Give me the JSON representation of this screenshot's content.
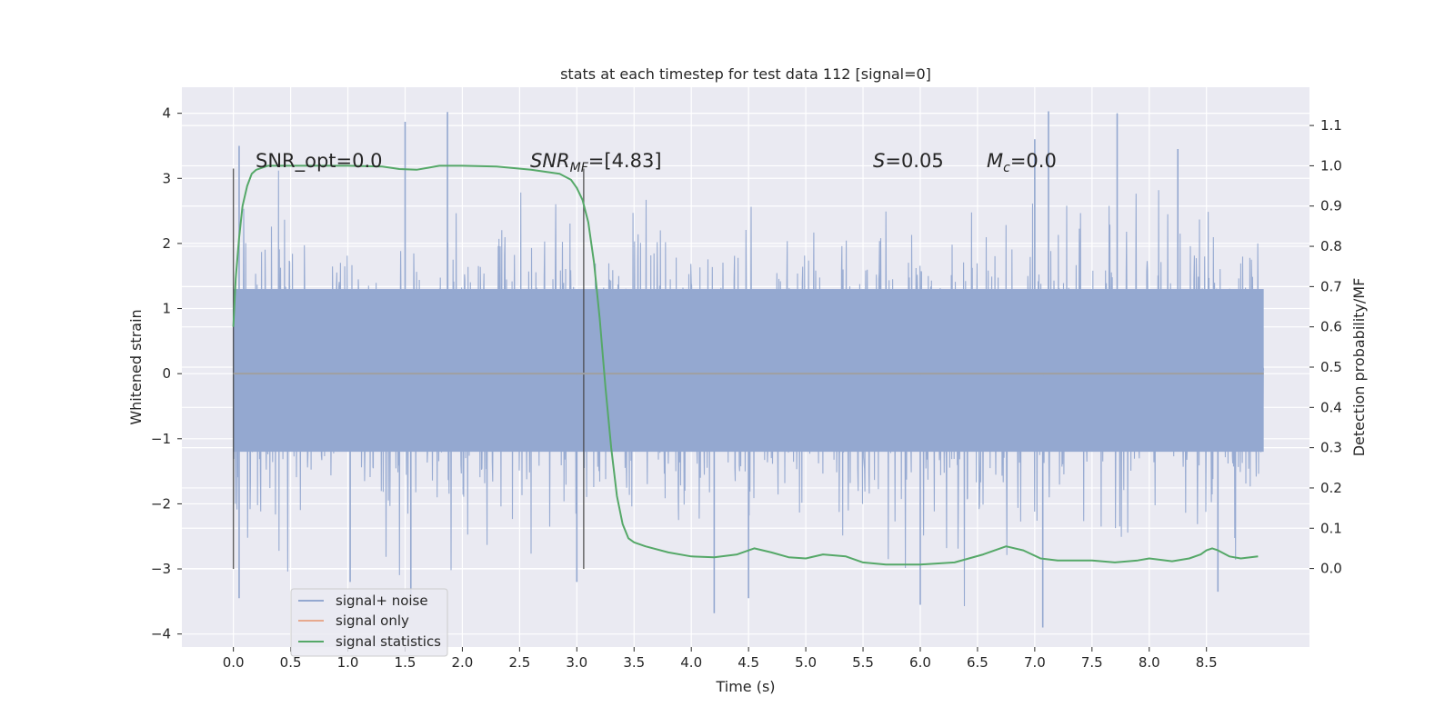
{
  "chart_data": {
    "type": "line",
    "title": "stats at each timestep for test data 112 [signal=0]",
    "xlabel": "Time (s)",
    "ylabel": "Whitened strain",
    "ylabel_right": "Detection probability/MF",
    "xlim": [
      -0.45,
      9.4
    ],
    "ylim": [
      -4.2,
      4.4
    ],
    "ylim_right": [
      -0.195,
      1.195
    ],
    "x_ticks": [
      0.0,
      0.5,
      1.0,
      1.5,
      2.0,
      2.5,
      3.0,
      3.5,
      4.0,
      4.5,
      5.0,
      5.5,
      6.0,
      6.5,
      7.0,
      7.5,
      8.0,
      8.5
    ],
    "x_tick_labels": [
      "0.0",
      "0.5",
      "1.0",
      "1.5",
      "2.0",
      "2.5",
      "3.0",
      "3.5",
      "4.0",
      "4.5",
      "5.0",
      "5.5",
      "6.0",
      "6.5",
      "7.0",
      "7.5",
      "8.0",
      "8.5"
    ],
    "y_ticks": [
      4,
      3,
      2,
      1,
      0,
      -1,
      -2,
      -3,
      -4
    ],
    "y_tick_labels": [
      "4",
      "3",
      "2",
      "1",
      "0",
      "−1",
      "−2",
      "−3",
      "−4"
    ],
    "y_right_ticks": [
      1.1,
      1.0,
      0.9,
      0.8,
      0.7,
      0.6,
      0.5,
      0.4,
      0.3,
      0.2,
      0.1,
      0.0
    ],
    "y_right_tick_labels": [
      "1.1",
      "1.0",
      "0.9",
      "0.8",
      "0.7",
      "0.6",
      "0.5",
      "0.4",
      "0.3",
      "0.2",
      "0.1",
      "0.0"
    ],
    "grid": true,
    "legend_position": "lower-left",
    "annotations": {
      "snr_opt": "SNR_opt=0.0",
      "snr_mf_base": "SNR",
      "snr_mf_sub": "MF",
      "snr_mf_rest": "=[4.83]",
      "s_sym": "S",
      "s_rest": "=0.05",
      "mc_sym": "M",
      "mc_sub": "c",
      "mc_rest": "=0.0"
    },
    "vertical_markers": [
      0.0,
      3.06
    ],
    "series": [
      {
        "name": "signal+ noise",
        "color": "#94a8d0",
        "kind": "noise",
        "x_range": [
          0.0,
          9.0
        ],
        "band": [
          -1.2,
          1.3
        ],
        "extremes": [
          -3.9,
          4.05
        ],
        "spike_points": [
          [
            0.05,
            3.5
          ],
          [
            0.05,
            -3.45
          ],
          [
            1.5,
            3.87
          ],
          [
            1.87,
            4.02
          ],
          [
            1.02,
            -3.2
          ],
          [
            1.55,
            -3.4
          ],
          [
            3.0,
            -3.2
          ],
          [
            4.2,
            -3.68
          ],
          [
            4.5,
            -3.45
          ],
          [
            6.0,
            -3.55
          ],
          [
            7.07,
            -3.9
          ],
          [
            7.12,
            4.03
          ],
          [
            7.72,
            4.0
          ],
          [
            8.6,
            -3.35
          ],
          [
            8.25,
            3.45
          ],
          [
            7.0,
            3.6
          ]
        ]
      },
      {
        "name": "signal only",
        "color": "#e7a98e",
        "x": [
          0.0,
          9.0
        ],
        "y": [
          0.0,
          0.0
        ]
      },
      {
        "name": "signal statistics",
        "color": "#55a868",
        "axis": "right",
        "x": [
          0.0,
          0.02,
          0.05,
          0.08,
          0.12,
          0.16,
          0.2,
          0.3,
          0.5,
          1.0,
          1.3,
          1.45,
          1.6,
          1.7,
          1.8,
          2.0,
          2.3,
          2.6,
          2.85,
          2.95,
          3.0,
          3.05,
          3.1,
          3.15,
          3.2,
          3.25,
          3.3,
          3.35,
          3.4,
          3.45,
          3.5,
          3.6,
          3.8,
          4.0,
          4.2,
          4.4,
          4.55,
          4.7,
          4.85,
          5.0,
          5.15,
          5.35,
          5.5,
          5.7,
          6.0,
          6.3,
          6.55,
          6.75,
          6.9,
          7.05,
          7.2,
          7.5,
          7.7,
          7.9,
          8.0,
          8.2,
          8.35,
          8.45,
          8.5,
          8.55,
          8.6,
          8.7,
          8.8,
          8.95
        ],
        "y": [
          0.6,
          0.72,
          0.82,
          0.9,
          0.95,
          0.98,
          0.99,
          1.0,
          1.0,
          1.0,
          0.998,
          0.992,
          0.99,
          0.995,
          1.0,
          1.0,
          0.998,
          0.99,
          0.98,
          0.965,
          0.945,
          0.915,
          0.86,
          0.76,
          0.62,
          0.45,
          0.3,
          0.18,
          0.11,
          0.075,
          0.065,
          0.055,
          0.04,
          0.03,
          0.028,
          0.035,
          0.05,
          0.04,
          0.028,
          0.025,
          0.035,
          0.03,
          0.015,
          0.01,
          0.01,
          0.015,
          0.035,
          0.055,
          0.045,
          0.025,
          0.02,
          0.02,
          0.015,
          0.02,
          0.025,
          0.018,
          0.025,
          0.035,
          0.045,
          0.05,
          0.045,
          0.03,
          0.025,
          0.03
        ]
      }
    ]
  }
}
